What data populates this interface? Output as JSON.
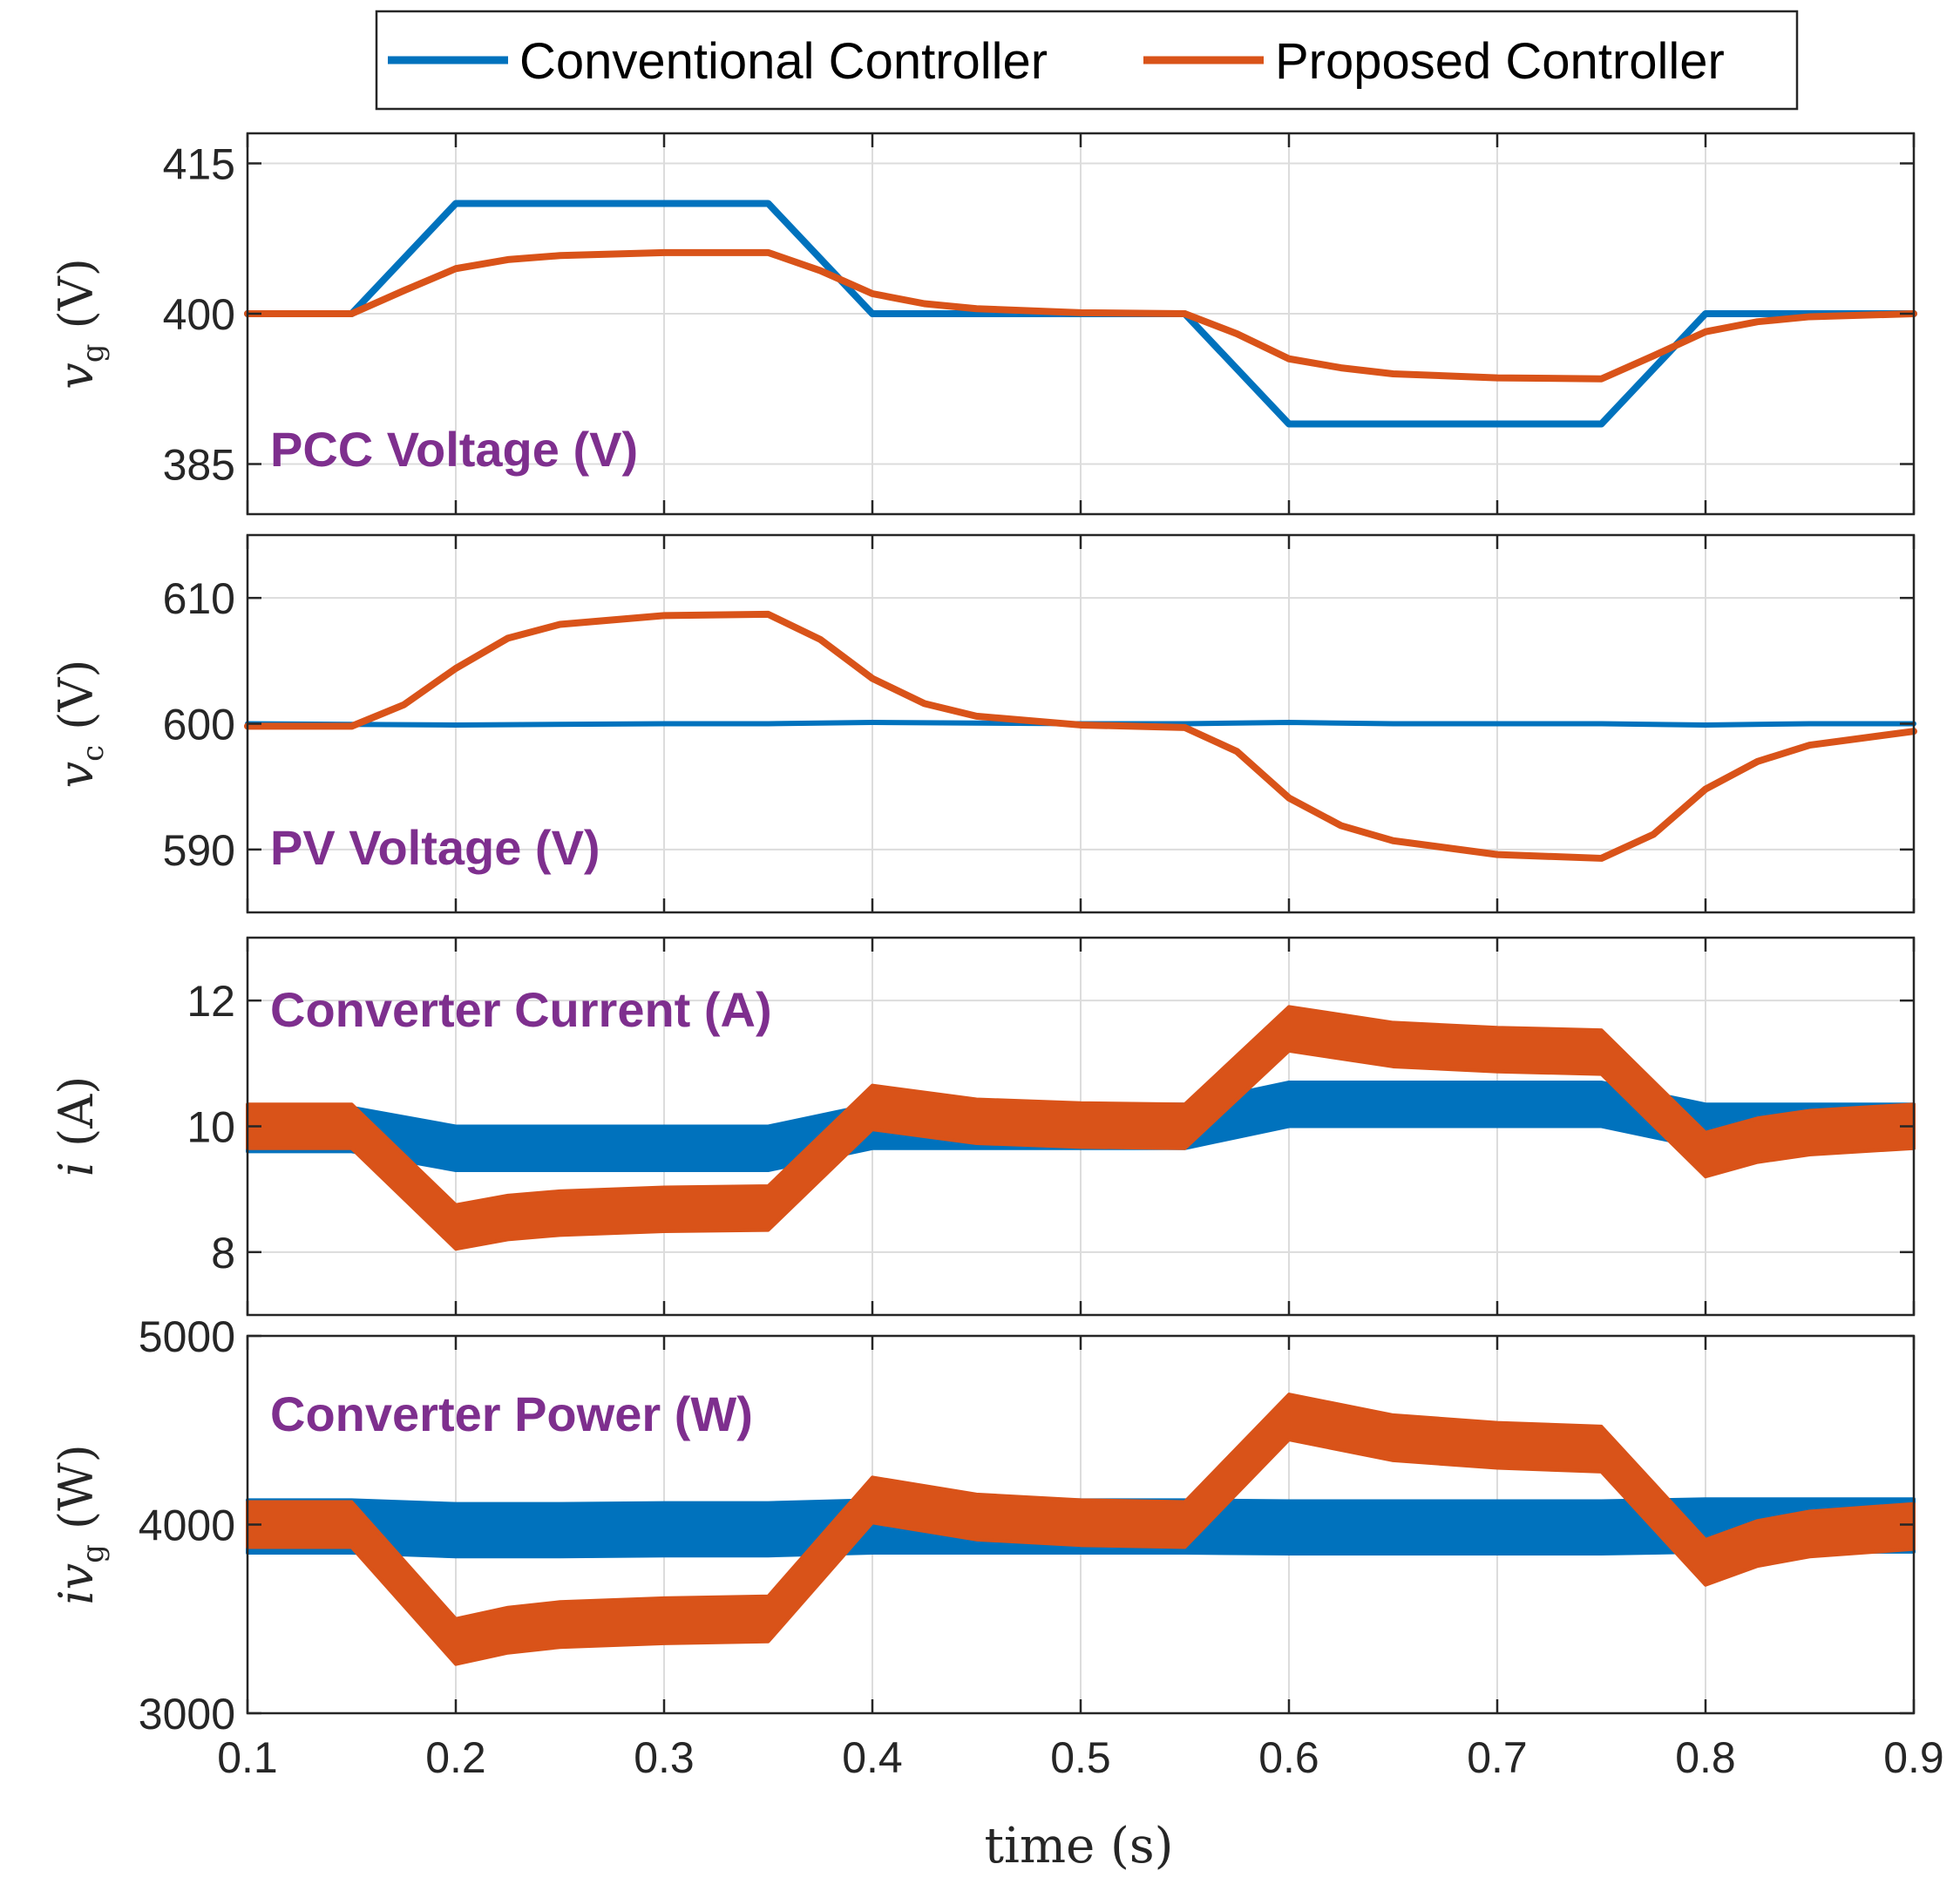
{
  "legend": {
    "conventional": "Conventional Controller",
    "proposed": "Proposed Controller"
  },
  "colors": {
    "conventional": "#0072BD",
    "proposed": "#D95319",
    "annotation": "#7E2F8E"
  },
  "xlabel": "time (s)",
  "chart_data": [
    {
      "type": "line",
      "name": "pcc-voltage",
      "annotation": "PCC Voltage (V)",
      "ylabel_main": "v",
      "ylabel_sub": "g",
      "ylabel_unit": "(V)",
      "xlim": [
        0.1,
        0.9
      ],
      "ylim": [
        380,
        418
      ],
      "xticks": [
        "0.1",
        "0.2",
        "0.3",
        "0.4",
        "0.5",
        "0.6",
        "0.7",
        "0.8",
        "0.9"
      ],
      "xtick_values": [
        0.1,
        0.2,
        0.3,
        0.4,
        0.5,
        0.6,
        0.7,
        0.8,
        0.9
      ],
      "yticks": [
        "385",
        "400",
        "415"
      ],
      "ytick_values": [
        385,
        400,
        415
      ],
      "series": [
        {
          "name": "Conventional Controller",
          "band": 0,
          "x": [
            0.1,
            0.15,
            0.2,
            0.25,
            0.3,
            0.35,
            0.4,
            0.45,
            0.5,
            0.55,
            0.6,
            0.65,
            0.7,
            0.75,
            0.8,
            0.85,
            0.9
          ],
          "y": [
            400,
            400,
            411,
            411,
            411,
            411,
            400,
            400,
            400,
            400,
            389,
            389,
            389,
            389,
            400,
            400,
            400
          ]
        },
        {
          "name": "Proposed Controller",
          "band": 0,
          "x": [
            0.1,
            0.15,
            0.175,
            0.2,
            0.225,
            0.25,
            0.3,
            0.35,
            0.375,
            0.4,
            0.425,
            0.45,
            0.5,
            0.55,
            0.575,
            0.6,
            0.625,
            0.65,
            0.7,
            0.75,
            0.775,
            0.8,
            0.825,
            0.85,
            0.9
          ],
          "y": [
            400,
            400,
            402.3,
            404.5,
            405.4,
            405.8,
            406.1,
            406.1,
            404.3,
            402,
            401,
            400.5,
            400.1,
            400,
            398,
            395.5,
            394.6,
            394,
            393.6,
            393.5,
            395.8,
            398.2,
            399.2,
            399.7,
            400
          ]
        }
      ]
    },
    {
      "type": "line",
      "name": "pv-voltage",
      "annotation": "PV Voltage (V)",
      "ylabel_main": "v",
      "ylabel_sub": "c",
      "ylabel_unit": "(V)",
      "xlim": [
        0.1,
        0.9
      ],
      "ylim": [
        585,
        615
      ],
      "xticks": [
        "0.1",
        "0.2",
        "0.3",
        "0.4",
        "0.5",
        "0.6",
        "0.7",
        "0.8",
        "0.9"
      ],
      "xtick_values": [
        0.1,
        0.2,
        0.3,
        0.4,
        0.5,
        0.6,
        0.7,
        0.8,
        0.9
      ],
      "yticks": [
        "590",
        "600",
        "610"
      ],
      "ytick_values": [
        590,
        600,
        610
      ],
      "series": [
        {
          "name": "Conventional Controller",
          "band": 0,
          "x": [
            0.1,
            0.2,
            0.3,
            0.35,
            0.4,
            0.5,
            0.55,
            0.6,
            0.65,
            0.7,
            0.75,
            0.8,
            0.85,
            0.9
          ],
          "y": [
            600,
            599.9,
            600,
            600,
            600.1,
            600,
            600,
            600.1,
            600,
            600,
            600,
            599.9,
            600,
            600
          ]
        },
        {
          "name": "Proposed Controller",
          "band": 0,
          "x": [
            0.1,
            0.15,
            0.175,
            0.2,
            0.225,
            0.25,
            0.3,
            0.35,
            0.375,
            0.4,
            0.425,
            0.45,
            0.5,
            0.55,
            0.575,
            0.6,
            0.625,
            0.65,
            0.7,
            0.75,
            0.775,
            0.8,
            0.825,
            0.85,
            0.9
          ],
          "y": [
            599.8,
            599.8,
            601.5,
            604.4,
            606.8,
            607.9,
            608.6,
            608.7,
            606.7,
            603.6,
            601.6,
            600.6,
            599.9,
            599.7,
            597.8,
            594.1,
            591.9,
            590.7,
            589.6,
            589.3,
            591.2,
            594.8,
            597,
            598.3,
            599.4
          ]
        }
      ]
    },
    {
      "type": "area",
      "name": "converter-current",
      "annotation": "Converter Current (A)",
      "ylabel_main": "i",
      "ylabel_sub": "",
      "ylabel_unit": "(A)",
      "xlim": [
        0.1,
        0.9
      ],
      "ylim": [
        7,
        13
      ],
      "xticks": [
        "0.1",
        "0.2",
        "0.3",
        "0.4",
        "0.5",
        "0.6",
        "0.7",
        "0.8",
        "0.9"
      ],
      "xtick_values": [
        0.1,
        0.2,
        0.3,
        0.4,
        0.5,
        0.6,
        0.7,
        0.8,
        0.9
      ],
      "yticks": [
        "8",
        "10",
        "12"
      ],
      "ytick_values": [
        8,
        10,
        12
      ],
      "series": [
        {
          "name": "Conventional Controller",
          "band": 0.35,
          "x": [
            0.1,
            0.15,
            0.2,
            0.25,
            0.3,
            0.35,
            0.4,
            0.45,
            0.5,
            0.55,
            0.6,
            0.65,
            0.7,
            0.75,
            0.8,
            0.85,
            0.9
          ],
          "y": [
            9.95,
            9.95,
            9.65,
            9.65,
            9.65,
            9.65,
            10.0,
            10.0,
            10.0,
            10.0,
            10.35,
            10.35,
            10.35,
            10.35,
            10.0,
            10.0,
            10.0
          ]
        },
        {
          "name": "Proposed Controller",
          "band": 0.35,
          "x": [
            0.1,
            0.15,
            0.2,
            0.225,
            0.25,
            0.3,
            0.35,
            0.4,
            0.45,
            0.5,
            0.55,
            0.6,
            0.65,
            0.7,
            0.75,
            0.8,
            0.825,
            0.85,
            0.9
          ],
          "y": [
            10.0,
            10.0,
            8.4,
            8.55,
            8.62,
            8.68,
            8.7,
            10.3,
            10.08,
            10.02,
            10.0,
            11.55,
            11.3,
            11.22,
            11.18,
            9.55,
            9.78,
            9.9,
            10.0
          ]
        }
      ]
    },
    {
      "type": "area",
      "name": "converter-power",
      "annotation": "Converter Power (W)",
      "ylabel_main": "iv",
      "ylabel_sub": "g",
      "ylabel_unit": "(W)",
      "xlim": [
        0.1,
        0.9
      ],
      "ylim": [
        3000,
        5000
      ],
      "xticks": [
        "0.1",
        "0.2",
        "0.3",
        "0.4",
        "0.5",
        "0.6",
        "0.7",
        "0.8",
        "0.9"
      ],
      "xtick_values": [
        0.1,
        0.2,
        0.3,
        0.4,
        0.5,
        0.6,
        0.7,
        0.8,
        0.9
      ],
      "yticks": [
        "3000",
        "4000",
        "5000"
      ],
      "ytick_values": [
        3000,
        4000,
        5000
      ],
      "series": [
        {
          "name": "Conventional Controller",
          "band": 140,
          "x": [
            0.1,
            0.15,
            0.2,
            0.25,
            0.3,
            0.35,
            0.4,
            0.45,
            0.5,
            0.55,
            0.6,
            0.65,
            0.7,
            0.75,
            0.8,
            0.85,
            0.9
          ],
          "y": [
            3990,
            3990,
            3970,
            3970,
            3975,
            3975,
            3990,
            3990,
            3990,
            3990,
            3985,
            3985,
            3985,
            3985,
            3995,
            3995,
            3995
          ]
        },
        {
          "name": "Proposed Controller",
          "band": 120,
          "x": [
            0.1,
            0.15,
            0.2,
            0.225,
            0.25,
            0.3,
            0.35,
            0.4,
            0.45,
            0.5,
            0.55,
            0.6,
            0.65,
            0.7,
            0.75,
            0.8,
            0.825,
            0.85,
            0.9
          ],
          "y": [
            4000,
            4000,
            3380,
            3440,
            3470,
            3490,
            3500,
            4130,
            4040,
            4010,
            4000,
            4570,
            4460,
            4420,
            4400,
            3800,
            3900,
            3950,
            3990
          ]
        }
      ]
    }
  ]
}
